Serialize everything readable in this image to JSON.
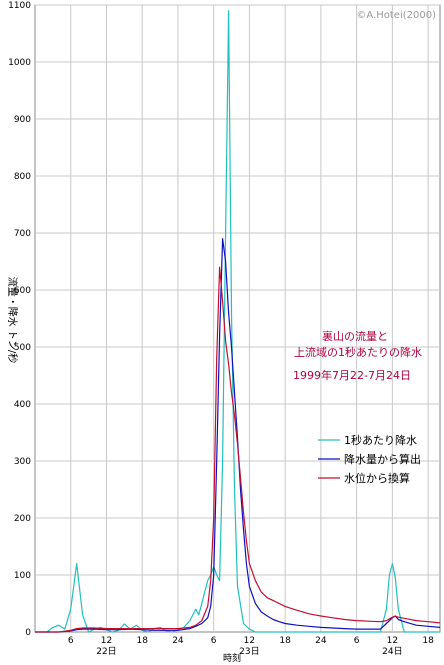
{
  "copyright": "©A.Hotei(2000)",
  "chart_data": {
    "type": "line",
    "title_lines": [
      "裏山の流量と",
      "上流域の1秒あたりの降水"
    ],
    "date_range": "1999年7月22-7月24日",
    "ylabel": "流量・降水 トン/秒",
    "xlabel": "時刻",
    "ylim": [
      0,
      1100
    ],
    "yticks": [
      0,
      100,
      200,
      300,
      400,
      500,
      600,
      700,
      800,
      900,
      1000,
      1100
    ],
    "xlim": [
      0,
      68
    ],
    "xticks": [
      {
        "x": 6,
        "label": "6"
      },
      {
        "x": 12,
        "label": "12"
      },
      {
        "x": 18,
        "label": "18"
      },
      {
        "x": 24,
        "label": "24"
      },
      {
        "x": 30,
        "label": "6"
      },
      {
        "x": 36,
        "label": "12"
      },
      {
        "x": 42,
        "label": "18"
      },
      {
        "x": 48,
        "label": "24"
      },
      {
        "x": 54,
        "label": "6"
      },
      {
        "x": 60,
        "label": "12"
      },
      {
        "x": 66,
        "label": "18"
      }
    ],
    "day_labels": [
      {
        "x": 12,
        "label": "22日"
      },
      {
        "x": 36,
        "label": "23日"
      },
      {
        "x": 60,
        "label": "24日"
      }
    ],
    "grid": true,
    "legend_position": "right",
    "series": [
      {
        "name": "1秒あたり降水",
        "color": "#20c0c0",
        "x": [
          0,
          2,
          3,
          4,
          5,
          6,
          7,
          8,
          9,
          10,
          11,
          12,
          13,
          14,
          15,
          16,
          17,
          18,
          19,
          20,
          21,
          22,
          23,
          24,
          25,
          26,
          27,
          27.5,
          28,
          28.5,
          29,
          29.5,
          30,
          30.5,
          31,
          31.5,
          32,
          32.5,
          33,
          33.5,
          34,
          35,
          36,
          37,
          38,
          40,
          44,
          48,
          52,
          56,
          58,
          59,
          59.5,
          60,
          60.5,
          61,
          62,
          66,
          68
        ],
        "y": [
          0,
          0,
          8,
          12,
          5,
          40,
          120,
          30,
          0,
          5,
          8,
          4,
          0,
          3,
          14,
          5,
          12,
          3,
          0,
          6,
          8,
          2,
          0,
          4,
          8,
          20,
          40,
          30,
          50,
          70,
          90,
          100,
          115,
          100,
          90,
          300,
          700,
          1090,
          560,
          250,
          80,
          15,
          5,
          0,
          0,
          0,
          0,
          0,
          0,
          0,
          0,
          40,
          100,
          120,
          95,
          40,
          0,
          0,
          0
        ]
      },
      {
        "name": "降水量から算出",
        "color": "#1010c0",
        "x": [
          0,
          4,
          6,
          7,
          8,
          10,
          12,
          14,
          16,
          18,
          20,
          22,
          24,
          26,
          27,
          28,
          29,
          29.5,
          30,
          30.5,
          31,
          31.5,
          32,
          32.5,
          33,
          33.5,
          34,
          34.5,
          35,
          35.5,
          36,
          37,
          38,
          39,
          40,
          41,
          42,
          44,
          46,
          48,
          50,
          52,
          54,
          56,
          58,
          59,
          60,
          60.5,
          61,
          62,
          64,
          66,
          68
        ],
        "y": [
          0,
          0,
          2,
          4,
          5,
          5,
          4,
          4,
          5,
          4,
          3,
          3,
          3,
          6,
          10,
          15,
          25,
          45,
          100,
          300,
          520,
          690,
          650,
          560,
          500,
          420,
          340,
          250,
          180,
          120,
          80,
          50,
          35,
          28,
          22,
          18,
          15,
          12,
          10,
          8,
          7,
          6,
          5,
          5,
          5,
          15,
          25,
          28,
          22,
          18,
          12,
          10,
          8
        ]
      },
      {
        "name": "水位から換算",
        "color": "#c01030",
        "x": [
          0,
          4,
          6,
          7,
          8,
          10,
          12,
          14,
          16,
          18,
          20,
          22,
          24,
          26,
          27,
          28,
          29,
          29.5,
          30,
          30.5,
          31,
          31.5,
          32,
          32.5,
          33,
          33.5,
          34,
          34.5,
          35,
          35.5,
          36,
          37,
          38,
          39,
          40,
          41,
          42,
          44,
          46,
          48,
          50,
          52,
          54,
          56,
          58,
          59,
          60,
          60.5,
          61,
          62,
          64,
          66,
          68
        ],
        "y": [
          0,
          0,
          3,
          6,
          7,
          7,
          6,
          6,
          6,
          6,
          6,
          6,
          6,
          8,
          12,
          20,
          45,
          90,
          200,
          480,
          640,
          580,
          510,
          470,
          420,
          380,
          330,
          270,
          210,
          160,
          120,
          90,
          70,
          60,
          55,
          50,
          45,
          38,
          32,
          28,
          25,
          22,
          20,
          19,
          18,
          20,
          26,
          28,
          26,
          24,
          20,
          18,
          16
        ]
      }
    ]
  }
}
